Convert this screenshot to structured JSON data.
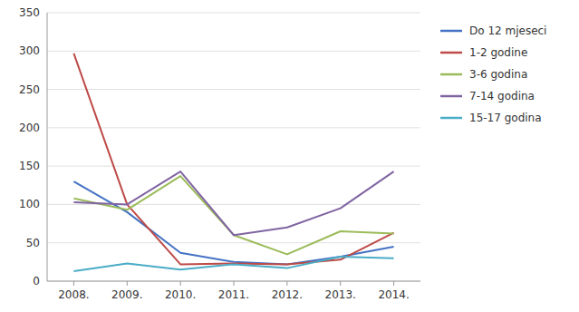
{
  "chart_data": {
    "type": "line",
    "categories": [
      "2008.",
      "2009.",
      "2010.",
      "2011.",
      "2012.",
      "2013.",
      "2014."
    ],
    "series": [
      {
        "name": "Do 12 mjeseci",
        "color": "#4472C4",
        "values": [
          130,
          90,
          37,
          25,
          22,
          32,
          45
        ]
      },
      {
        "name": "1-2 godine",
        "color": "#BE4B48",
        "values": [
          297,
          100,
          22,
          23,
          22,
          28,
          63
        ]
      },
      {
        "name": "3-6 godina",
        "color": "#9BBB59",
        "values": [
          108,
          93,
          137,
          60,
          35,
          65,
          62
        ]
      },
      {
        "name": "7-14 godina",
        "color": "#8064A2",
        "values": [
          103,
          100,
          143,
          60,
          70,
          95,
          143
        ]
      },
      {
        "name": "15-17 godina",
        "color": "#4BACC6",
        "values": [
          13,
          23,
          15,
          22,
          17,
          32,
          30
        ]
      }
    ],
    "ylim": [
      0,
      350
    ],
    "yticks": [
      0,
      50,
      100,
      150,
      200,
      250,
      300,
      350
    ],
    "grid": true,
    "legend": "right"
  }
}
